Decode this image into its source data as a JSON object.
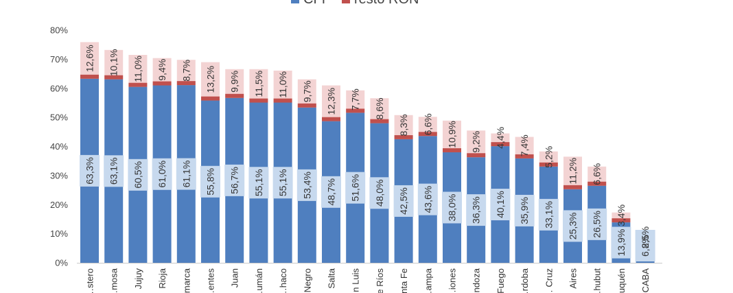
{
  "chart_data": {
    "type": "bar",
    "stacked": true,
    "categories": [
      "…stero",
      "…mosa",
      "Jujuy",
      "Rioja",
      "…marca",
      "…entes",
      "Juan",
      "…umán",
      "…haco",
      "…Negro",
      "Salta",
      "…n Luis",
      "…e Ríos",
      "…nta Fe",
      "…ampa",
      "…iones",
      "…ndoza",
      "…Fuego",
      "…rdoba",
      "… Cruz",
      "Aires",
      "…hubut",
      "…uquén",
      "CABA"
    ],
    "series": [
      {
        "name": "CFI",
        "color": "#4f7fbf",
        "values": [
          63.3,
          63.1,
          60.5,
          61.0,
          61.1,
          55.8,
          56.7,
          55.1,
          55.1,
          53.4,
          48.7,
          51.6,
          48.0,
          42.5,
          43.6,
          38.0,
          36.3,
          40.1,
          35.9,
          33.1,
          25.3,
          26.5,
          13.9,
          6.8
        ],
        "labels": [
          "63,3%",
          "63,1%",
          "60,5%",
          "61,0%",
          "61,1%",
          "55,8%",
          "56,7%",
          "55,1%",
          "55,1%",
          "53,4%",
          "48,7%",
          "51,6%",
          "48,0%",
          "42,5%",
          "43,6%",
          "38,0%",
          "36,3%",
          "40,1%",
          "35,9%",
          "33,1%",
          "25,3%",
          "26,5%",
          "13,9%",
          "6,8%"
        ]
      },
      {
        "name": "resto RON",
        "color": "#c0504d",
        "values": [
          12.6,
          10.1,
          11.0,
          9.4,
          8.7,
          13.2,
          9.9,
          11.5,
          11.0,
          9.7,
          12.3,
          7.7,
          8.6,
          8.3,
          6.6,
          10.9,
          9.2,
          4.4,
          7.4,
          5.2,
          11.2,
          6.6,
          3.4,
          2.5
        ],
        "labels": [
          "12,6%",
          "10,1%",
          "11,0%",
          "9,4%",
          "8,7%",
          "13,2%",
          "9,9%",
          "11,5%",
          "11,0%",
          "9,7%",
          "12,3%",
          "7,7%",
          "8,6%",
          "8,3%",
          "6,6%",
          "10,9%",
          "9,2%",
          "4,4%",
          "7,4%",
          "5,2%",
          "11,2%",
          "6,6%",
          "3,4%",
          "2,5%"
        ]
      }
    ],
    "y_ticks": [
      "0%",
      "10%",
      "20%",
      "30%",
      "40%",
      "50%",
      "60%",
      "70%",
      "80%"
    ],
    "ylim": [
      0,
      80
    ],
    "legend": {
      "position": "top",
      "entries": [
        "CFI",
        "resto RON"
      ]
    },
    "grid": false
  }
}
